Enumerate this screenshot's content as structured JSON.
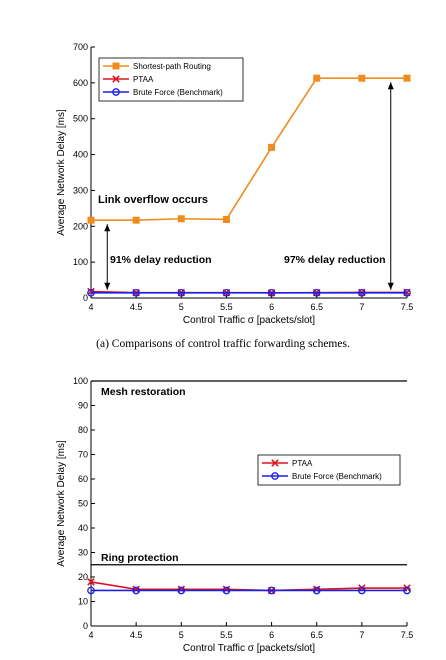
{
  "caption_a": "(a) Comparisons of control traffic forwarding schemes.",
  "colors": {
    "orange": "#f08c1e",
    "red": "#e0141e",
    "blue": "#1e1ee6",
    "black": "#000000"
  },
  "chart_data": [
    {
      "type": "line",
      "xlabel": "Control Traffic σ [packets/slot]",
      "ylabel": "Average Network Delay [ms]",
      "xlim": [
        4,
        7.5
      ],
      "ylim": [
        0,
        700
      ],
      "xticks": [
        "4",
        "4.5",
        "5",
        "5.5",
        "6",
        "6.5",
        "7",
        "7.5"
      ],
      "yticks": [
        "0",
        "100",
        "200",
        "300",
        "400",
        "500",
        "600",
        "700"
      ],
      "grid": false,
      "legend_position": "top-left",
      "x": [
        4,
        4.5,
        5,
        5.5,
        6,
        6.5,
        7,
        7.5
      ],
      "series": [
        {
          "name": "Shortest-path Routing",
          "color": "#f08c1e",
          "marker": "square",
          "values": [
            217,
            217,
            221,
            219,
            420,
            613,
            613,
            613
          ]
        },
        {
          "name": "PTAA",
          "color": "#e0141e",
          "marker": "x",
          "values": [
            18,
            15,
            15,
            15,
            14.5,
            15,
            15.5,
            15.5
          ]
        },
        {
          "name": "Brute Force (Benchmark)",
          "color": "#1e1ee6",
          "marker": "circle",
          "values": [
            14.5,
            14.5,
            14.5,
            14.5,
            14.5,
            14.5,
            14.5,
            14.5
          ]
        }
      ],
      "annotations": [
        {
          "text": "Link overflow occurs"
        },
        {
          "text": "91% delay reduction"
        },
        {
          "text": "97% delay reduction"
        }
      ]
    },
    {
      "type": "line",
      "xlabel": "Control Traffic σ [packets/slot]",
      "ylabel": "Average Network Delay [ms]",
      "xlim": [
        4,
        7.5
      ],
      "ylim": [
        0,
        100
      ],
      "xticks": [
        "4",
        "4.5",
        "5",
        "5.5",
        "6",
        "6.5",
        "7",
        "7.5"
      ],
      "yticks": [
        "0",
        "10",
        "20",
        "30",
        "40",
        "50",
        "60",
        "70",
        "80",
        "90",
        "100"
      ],
      "grid": false,
      "legend_position": "upper-right",
      "x": [
        4,
        4.5,
        5,
        5.5,
        6,
        6.5,
        7,
        7.5
      ],
      "series": [
        {
          "name": "PTAA",
          "color": "#e0141e",
          "marker": "x",
          "values": [
            18,
            15,
            15,
            15,
            14.5,
            15,
            15.5,
            15.5
          ]
        },
        {
          "name": "Brute Force (Benchmark)",
          "color": "#1e1ee6",
          "marker": "circle",
          "values": [
            14.5,
            14.5,
            14.5,
            14.5,
            14.5,
            14.5,
            14.5,
            14.5
          ]
        }
      ],
      "reference_lines": [
        {
          "label": "Mesh restoration",
          "value": 100,
          "color": "#000000"
        },
        {
          "label": "Ring protection",
          "value": 25,
          "color": "#000000"
        }
      ]
    }
  ]
}
